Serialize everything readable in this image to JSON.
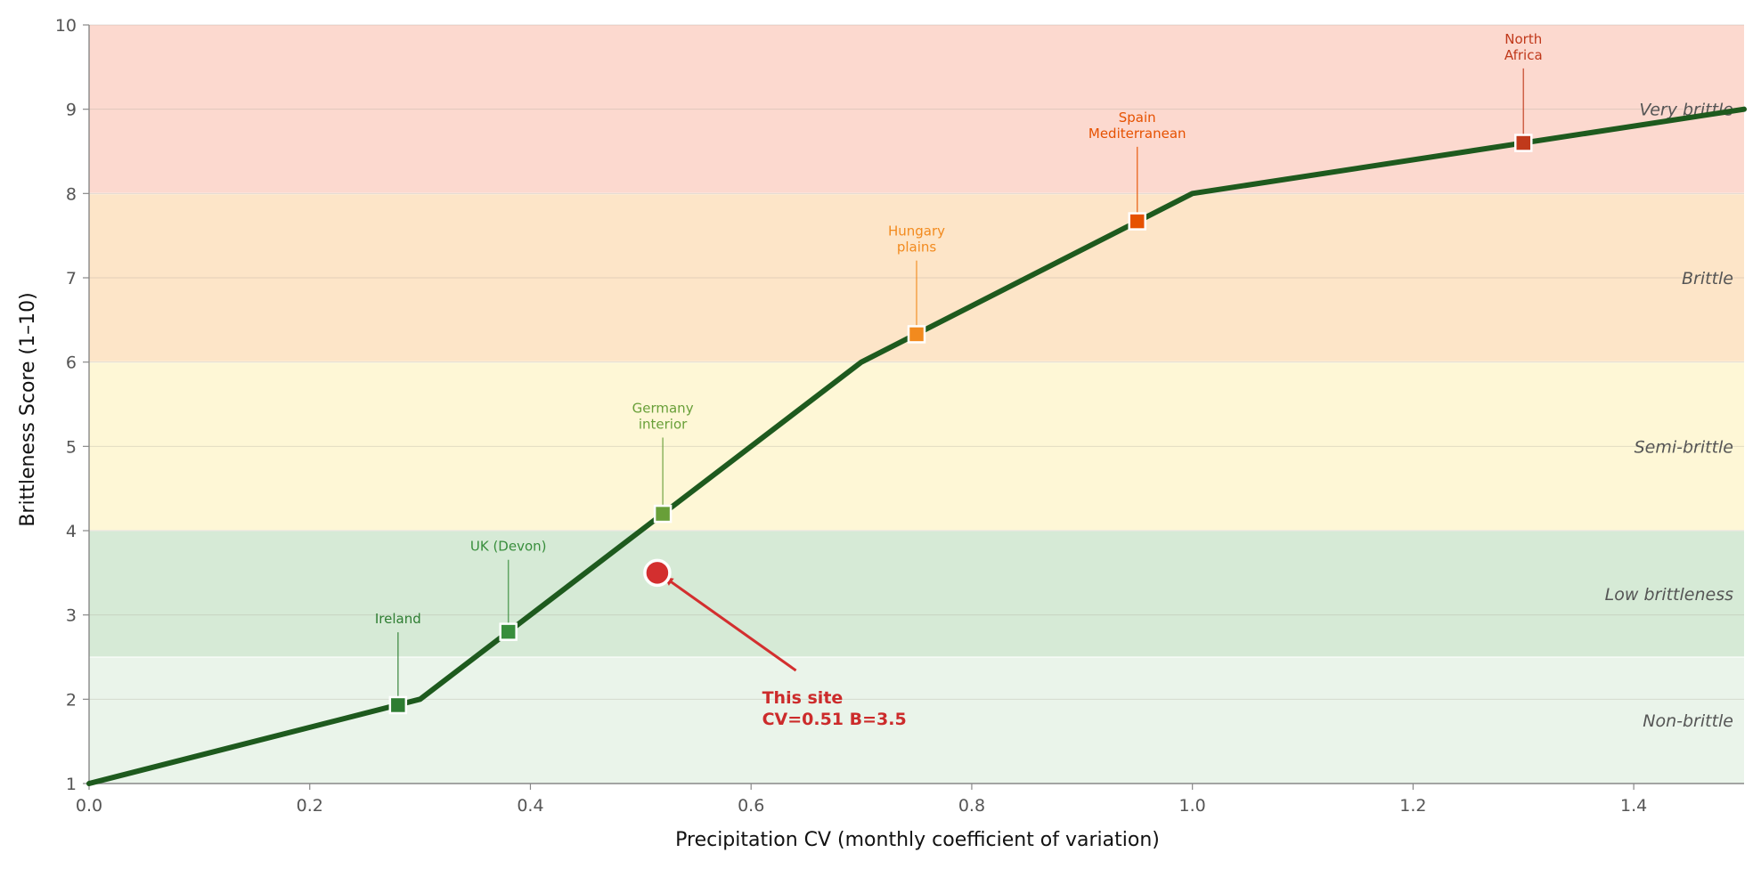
{
  "chart_data": {
    "type": "line",
    "title": "",
    "xlabel": "Precipitation CV (monthly coefficient of variation)",
    "ylabel": "Brittleness Score (1–10)",
    "xlim": [
      0,
      1.5
    ],
    "ylim": [
      1,
      10
    ],
    "xticks": [
      0.0,
      0.2,
      0.4,
      0.6,
      0.8,
      1.0,
      1.2,
      1.4
    ],
    "xtick_labels": [
      "0.0",
      "0.2",
      "0.4",
      "0.6",
      "0.8",
      "1.0",
      "1.2",
      "1.4"
    ],
    "yticks": [
      1,
      2,
      3,
      4,
      5,
      6,
      7,
      8,
      9,
      10
    ],
    "ytick_labels": [
      "1",
      "2",
      "3",
      "4",
      "5",
      "6",
      "7",
      "8",
      "9",
      "10"
    ],
    "grid": "horizontal",
    "bands": [
      {
        "label": "Non-brittle",
        "y0": 1,
        "y1": 2.5,
        "color": "#eaf4ea"
      },
      {
        "label": "Low brittleness",
        "y0": 2.5,
        "y1": 4,
        "color": "#d6ead6"
      },
      {
        "label": "Semi-brittle",
        "y0": 4,
        "y1": 6,
        "color": "#fef7d6"
      },
      {
        "label": "Brittle",
        "y0": 6,
        "y1": 8,
        "color": "#fde5c8"
      },
      {
        "label": "Very brittle",
        "y0": 8,
        "y1": 10,
        "color": "#fcd9cf"
      }
    ],
    "series": [
      {
        "x": [
          0.0,
          0.3,
          0.7,
          1.0,
          1.5
        ],
        "y": [
          1,
          2,
          6,
          8,
          9
        ],
        "color": "#1e5a1e"
      }
    ],
    "reference_points": [
      {
        "label": "Ireland",
        "x": 0.28,
        "y": 1.93,
        "color": "#2e7d32",
        "label_y": 2.9
      },
      {
        "label": "UK (Devon)",
        "x": 0.38,
        "y": 2.8,
        "color": "#388e3c",
        "label_y": 3.76
      },
      {
        "label": "Germany\ninterior",
        "x": 0.52,
        "y": 4.2,
        "color": "#689f38",
        "label_y": 5.4
      },
      {
        "label": "Hungary\nplains",
        "x": 0.75,
        "y": 6.33,
        "color": "#f28a1e",
        "label_y": 7.5
      },
      {
        "label": "Spain\nMediterranean",
        "x": 0.95,
        "y": 7.67,
        "color": "#e65100",
        "label_y": 8.85
      },
      {
        "label": "North\nAfrica",
        "x": 1.3,
        "y": 8.6,
        "color": "#c0391b",
        "label_y": 9.78
      }
    ],
    "highlight": {
      "label": "This site\nCV=0.51  B=3.5",
      "x": 0.515,
      "y": 3.5,
      "label_x": 0.61,
      "label_y": 1.95,
      "color": "#d32f2f"
    }
  },
  "colors": {
    "curve": "#1e5a1e",
    "grid": "#cfcfcf",
    "axis": "#888888"
  }
}
